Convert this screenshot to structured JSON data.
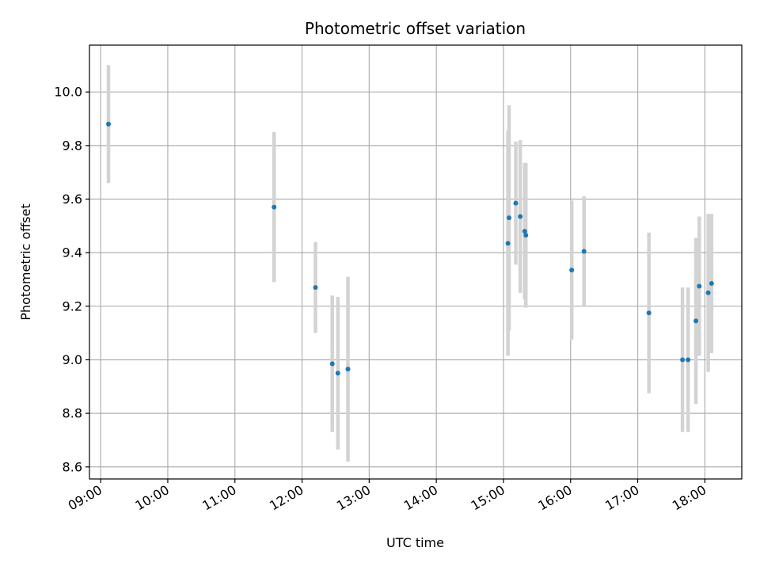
{
  "chart_data": {
    "type": "scatter",
    "title": "Photometric offset variation",
    "xlabel": "UTC time",
    "ylabel": "Photometric offset",
    "x_tick_labels": [
      "09:00",
      "10:00",
      "11:00",
      "12:00",
      "13:00",
      "14:00",
      "15:00",
      "16:00",
      "17:00",
      "18:00"
    ],
    "y_ticks": [
      8.6,
      8.8,
      9.0,
      9.2,
      9.4,
      9.6,
      9.8,
      10.0
    ],
    "y_tick_labels": [
      "8.6",
      "8.8",
      "9.0",
      "9.2",
      "9.4",
      "9.6",
      "9.8",
      "10.0"
    ],
    "xlim": [
      "08:50",
      "18:33"
    ],
    "ylim": [
      8.555,
      10.175
    ],
    "grid": true,
    "marker_color": "#1f77b4",
    "errorbar_color": "#d3d3d3",
    "points": [
      {
        "x": "09:07",
        "y": 9.88,
        "err": 0.22
      },
      {
        "x": "11:35",
        "y": 9.57,
        "err": 0.28
      },
      {
        "x": "12:12",
        "y": 9.27,
        "err": 0.17
      },
      {
        "x": "12:27",
        "y": 8.985,
        "err": 0.255
      },
      {
        "x": "12:32",
        "y": 8.95,
        "err": 0.285
      },
      {
        "x": "12:41",
        "y": 8.965,
        "err": 0.345
      },
      {
        "x": "15:04",
        "y": 9.435,
        "err": 0.42
      },
      {
        "x": "15:05",
        "y": 9.53,
        "err": 0.42
      },
      {
        "x": "15:11",
        "y": 9.585,
        "err": 0.23
      },
      {
        "x": "15:15",
        "y": 9.535,
        "err": 0.285
      },
      {
        "x": "15:19",
        "y": 9.48,
        "err": 0.255
      },
      {
        "x": "15:20",
        "y": 9.465,
        "err": 0.27
      },
      {
        "x": "16:01",
        "y": 9.335,
        "err": 0.26
      },
      {
        "x": "16:12",
        "y": 9.405,
        "err": 0.205
      },
      {
        "x": "17:10",
        "y": 9.175,
        "err": 0.3
      },
      {
        "x": "17:40",
        "y": 9.0,
        "err": 0.27
      },
      {
        "x": "17:45",
        "y": 9.0,
        "err": 0.27
      },
      {
        "x": "17:52",
        "y": 9.145,
        "err": 0.31
      },
      {
        "x": "17:55",
        "y": 9.275,
        "err": 0.26
      },
      {
        "x": "18:03",
        "y": 9.25,
        "err": 0.295
      },
      {
        "x": "18:06",
        "y": 9.285,
        "err": 0.26
      }
    ]
  }
}
